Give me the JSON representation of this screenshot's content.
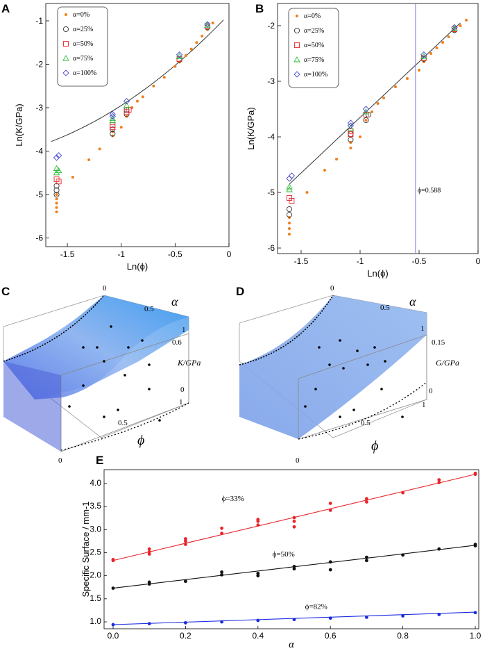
{
  "chart_data": [
    {
      "panel": "A",
      "type": "scatter",
      "xlabel": "Ln(ϕ)",
      "ylabel": "Ln(K/GPa)",
      "xlim": [
        -1.7,
        0
      ],
      "ylim": [
        -6.2,
        -0.6
      ],
      "xticks": [
        "-1.5",
        "-1",
        "-0.5",
        "0"
      ],
      "xtick_values": [
        -1.5,
        -1,
        -0.5,
        0
      ],
      "yticks": [
        "-1",
        "-2",
        "-3",
        "-4",
        "-5",
        "-6"
      ],
      "ytick_values": [
        -1,
        -2,
        -3,
        -4,
        -5,
        -6
      ],
      "legend": [
        "α=0%",
        "α=25%",
        "α=50%",
        "α=75%",
        "α=100%"
      ],
      "series": [
        {
          "name": "α=0%",
          "marker": "dot",
          "color": "#f07f1a",
          "points": [
            [
              -1.6,
              -5.4
            ],
            [
              -1.6,
              -5.3
            ],
            [
              -1.6,
              -5.2
            ],
            [
              -1.6,
              -5.1
            ],
            [
              -1.6,
              -5.0
            ],
            [
              -1.45,
              -4.6
            ],
            [
              -1.3,
              -4.2
            ],
            [
              -1.2,
              -3.95
            ],
            [
              -1.08,
              -3.65
            ],
            [
              -1.08,
              -3.55
            ],
            [
              -1.0,
              -3.45
            ],
            [
              -0.95,
              -3.2
            ],
            [
              -0.9,
              -3.0
            ],
            [
              -0.85,
              -2.85
            ],
            [
              -0.8,
              -2.75
            ],
            [
              -0.7,
              -2.5
            ],
            [
              -0.6,
              -2.3
            ],
            [
              -0.5,
              -2.05
            ],
            [
              -0.46,
              -1.95
            ],
            [
              -0.4,
              -1.8
            ],
            [
              -0.35,
              -1.65
            ],
            [
              -0.3,
              -1.5
            ],
            [
              -0.25,
              -1.35
            ],
            [
              -0.2,
              -1.2
            ],
            [
              -0.15,
              -1.05
            ]
          ]
        },
        {
          "name": "α=25%",
          "marker": "circle",
          "color": "#333333",
          "points": [
            [
              -1.6,
              -4.9
            ],
            [
              -1.6,
              -5.0
            ],
            [
              -1.6,
              -4.8
            ],
            [
              -1.08,
              -3.6
            ],
            [
              -1.08,
              -3.5
            ],
            [
              -0.95,
              -3.15
            ],
            [
              -0.95,
              -3.05
            ],
            [
              -0.46,
              -1.9
            ],
            [
              -0.2,
              -1.15
            ]
          ]
        },
        {
          "name": "α=50%",
          "marker": "square",
          "color": "#e8252b",
          "points": [
            [
              -1.6,
              -4.65
            ],
            [
              -1.58,
              -4.7
            ],
            [
              -1.08,
              -3.4
            ],
            [
              -1.08,
              -3.45
            ],
            [
              -0.95,
              -3.1
            ],
            [
              -0.93,
              -3.05
            ],
            [
              -0.46,
              -1.88
            ],
            [
              -0.2,
              -1.12
            ]
          ]
        },
        {
          "name": "α=75%",
          "marker": "triangle",
          "color": "#2dbd3a",
          "points": [
            [
              -1.6,
              -4.4
            ],
            [
              -1.6,
              -4.5
            ],
            [
              -1.58,
              -4.45
            ],
            [
              -1.08,
              -3.3
            ],
            [
              -1.08,
              -3.25
            ],
            [
              -0.95,
              -2.95
            ],
            [
              -0.46,
              -1.82
            ],
            [
              -0.2,
              -1.1
            ]
          ]
        },
        {
          "name": "α=100%",
          "marker": "diamond",
          "color": "#4a4ad0",
          "points": [
            [
              -1.6,
              -4.15
            ],
            [
              -1.58,
              -4.1
            ],
            [
              -1.08,
              -3.2
            ],
            [
              -1.08,
              -3.15
            ],
            [
              -0.95,
              -2.85
            ],
            [
              -0.46,
              -1.78
            ],
            [
              -0.2,
              -1.08
            ]
          ]
        }
      ],
      "curve_note": "theory curve"
    },
    {
      "panel": "B",
      "type": "scatter",
      "xlabel": "Ln(ϕ)",
      "ylabel": "Ln(K/GPa)",
      "xlim": [
        -1.7,
        0
      ],
      "ylim": [
        -6.1,
        -1.6
      ],
      "xticks": [
        "-1.5",
        "-1",
        "-0.5",
        "0"
      ],
      "xtick_values": [
        -1.5,
        -1,
        -0.5,
        0
      ],
      "yticks": [
        "-2",
        "-3",
        "-4",
        "-5",
        "-6"
      ],
      "ytick_values": [
        -2,
        -3,
        -4,
        -5,
        -6
      ],
      "legend": [
        "α=0%",
        "α=25%",
        "α=50%",
        "α=75%",
        "α=100%"
      ],
      "annotation": "ϕ=0.588",
      "vline": -0.53,
      "fit_line": [
        [
          -1.6,
          -4.85
        ],
        [
          -0.15,
          -1.95
        ]
      ],
      "series": [
        {
          "name": "α=0%",
          "marker": "dot",
          "color": "#f07f1a",
          "points": [
            [
              -1.6,
              -5.75
            ],
            [
              -1.6,
              -5.65
            ],
            [
              -1.6,
              -5.55
            ],
            [
              -1.6,
              -5.45
            ],
            [
              -1.45,
              -5.0
            ],
            [
              -1.3,
              -4.6
            ],
            [
              -1.2,
              -4.4
            ],
            [
              -1.08,
              -4.2
            ],
            [
              -1.08,
              -4.1
            ],
            [
              -1.0,
              -4.0
            ],
            [
              -0.95,
              -3.7
            ],
            [
              -0.9,
              -3.55
            ],
            [
              -0.85,
              -3.4
            ],
            [
              -0.8,
              -3.3
            ],
            [
              -0.7,
              -3.1
            ],
            [
              -0.6,
              -2.95
            ],
            [
              -0.5,
              -2.8
            ],
            [
              -0.46,
              -2.65
            ],
            [
              -0.4,
              -2.5
            ],
            [
              -0.35,
              -2.4
            ],
            [
              -0.3,
              -2.3
            ],
            [
              -0.25,
              -2.2
            ],
            [
              -0.2,
              -2.1
            ],
            [
              -0.15,
              -2.0
            ],
            [
              -0.1,
              -1.9
            ]
          ]
        },
        {
          "name": "α=25%",
          "marker": "circle",
          "color": "#333333",
          "points": [
            [
              -1.6,
              -5.3
            ],
            [
              -1.6,
              -5.4
            ],
            [
              -1.08,
              -4.05
            ],
            [
              -1.08,
              -3.95
            ],
            [
              -0.95,
              -3.7
            ],
            [
              -0.93,
              -3.6
            ],
            [
              -0.46,
              -2.6
            ],
            [
              -0.2,
              -2.08
            ]
          ]
        },
        {
          "name": "α=50%",
          "marker": "square",
          "color": "#e8252b",
          "points": [
            [
              -1.6,
              -5.1
            ],
            [
              -1.58,
              -5.15
            ],
            [
              -1.08,
              -3.9
            ],
            [
              -1.08,
              -3.95
            ],
            [
              -0.95,
              -3.6
            ],
            [
              -0.46,
              -2.58
            ],
            [
              -0.2,
              -2.06
            ]
          ]
        },
        {
          "name": "α=75%",
          "marker": "triangle",
          "color": "#2dbd3a",
          "points": [
            [
              -1.6,
              -4.9
            ],
            [
              -1.6,
              -4.95
            ],
            [
              -1.08,
              -3.85
            ],
            [
              -0.95,
              -3.55
            ],
            [
              -0.46,
              -2.55
            ],
            [
              -0.2,
              -2.05
            ]
          ]
        },
        {
          "name": "α=100%",
          "marker": "diamond",
          "color": "#4a4ad0",
          "points": [
            [
              -1.6,
              -4.75
            ],
            [
              -1.58,
              -4.7
            ],
            [
              -1.08,
              -3.8
            ],
            [
              -1.08,
              -3.75
            ],
            [
              -0.95,
              -3.5
            ],
            [
              -0.46,
              -2.52
            ],
            [
              -0.2,
              -2.03
            ]
          ]
        }
      ]
    },
    {
      "panel": "C",
      "type": "surface",
      "axis_alpha": "α",
      "alpha_ticks": [
        "0",
        "0.5",
        "1"
      ],
      "axis_z": "K/GPa",
      "z_ticks": [
        "0.6",
        "0"
      ],
      "axis_phi": "ϕ",
      "phi_ticks": [
        "1",
        "0.5",
        "0"
      ]
    },
    {
      "panel": "D",
      "type": "surface",
      "axis_alpha": "α",
      "alpha_ticks": [
        "0",
        "0.5",
        "1"
      ],
      "axis_z": "G/GPa",
      "z_ticks": [
        "0.15",
        "0"
      ],
      "axis_phi": "ϕ",
      "phi_ticks": [
        "1",
        "0.5",
        "0"
      ]
    },
    {
      "panel": "E",
      "type": "scatter",
      "xlabel": "α",
      "ylabel": "Specific Surface / mm-1",
      "xlim": [
        0,
        1.0
      ],
      "ylim": [
        0.85,
        4.3
      ],
      "xticks": [
        "0.0",
        "0.2",
        "0.4",
        "0.6",
        "0.8",
        "1.0"
      ],
      "xtick_values": [
        0,
        0.2,
        0.4,
        0.6,
        0.8,
        1.0
      ],
      "yticks": [
        "1.0",
        "1.5",
        "2.0",
        "2.5",
        "3.0",
        "3.5",
        "4.0"
      ],
      "ytick_values": [
        1.0,
        1.5,
        2.0,
        2.5,
        3.0,
        3.5,
        4.0
      ],
      "series": [
        {
          "name": "ϕ=33%",
          "color": "#e8252b",
          "fit": [
            2.33,
            4.2
          ],
          "points": [
            [
              0,
              2.33
            ],
            [
              0,
              2.35
            ],
            [
              0.1,
              2.47
            ],
            [
              0.1,
              2.52
            ],
            [
              0.1,
              2.58
            ],
            [
              0.2,
              2.68
            ],
            [
              0.2,
              2.75
            ],
            [
              0.2,
              2.8
            ],
            [
              0.3,
              2.92
            ],
            [
              0.3,
              3.03
            ],
            [
              0.4,
              3.1
            ],
            [
              0.4,
              3.18
            ],
            [
              0.4,
              3.22
            ],
            [
              0.5,
              3.06
            ],
            [
              0.5,
              3.18
            ],
            [
              0.5,
              3.26
            ],
            [
              0.6,
              3.42
            ],
            [
              0.6,
              3.57
            ],
            [
              0.7,
              3.6
            ],
            [
              0.7,
              3.67
            ],
            [
              0.8,
              3.8
            ],
            [
              0.9,
              4.02
            ],
            [
              0.9,
              4.08
            ],
            [
              1.0,
              4.2
            ],
            [
              1.0,
              4.22
            ]
          ]
        },
        {
          "name": "ϕ=50%",
          "color": "#111111",
          "fit": [
            1.73,
            2.66
          ],
          "points": [
            [
              0,
              1.73
            ],
            [
              0.1,
              1.82
            ],
            [
              0.1,
              1.86
            ],
            [
              0.2,
              1.88
            ],
            [
              0.3,
              2.02
            ],
            [
              0.3,
              2.08
            ],
            [
              0.4,
              2.0
            ],
            [
              0.4,
              2.05
            ],
            [
              0.5,
              2.15
            ],
            [
              0.5,
              2.2
            ],
            [
              0.6,
              2.13
            ],
            [
              0.6,
              2.3
            ],
            [
              0.7,
              2.33
            ],
            [
              0.7,
              2.4
            ],
            [
              0.8,
              2.45
            ],
            [
              0.9,
              2.58
            ],
            [
              1.0,
              2.65
            ],
            [
              1.0,
              2.68
            ]
          ]
        },
        {
          "name": "ϕ=82%",
          "color": "#1a2be0",
          "fit": [
            0.94,
            1.21
          ],
          "points": [
            [
              0,
              0.94
            ],
            [
              0.1,
              0.96
            ],
            [
              0.2,
              0.98
            ],
            [
              0.3,
              1.0
            ],
            [
              0.4,
              1.03
            ],
            [
              0.5,
              1.05
            ],
            [
              0.6,
              1.08
            ],
            [
              0.7,
              1.1
            ],
            [
              0.8,
              1.13
            ],
            [
              0.9,
              1.16
            ],
            [
              1.0,
              1.2
            ]
          ]
        }
      ],
      "labels": [
        "ϕ=33%",
        "ϕ=50%",
        "ϕ=82%"
      ]
    }
  ],
  "panel_labels": [
    "A",
    "B",
    "C",
    "D",
    "E"
  ]
}
